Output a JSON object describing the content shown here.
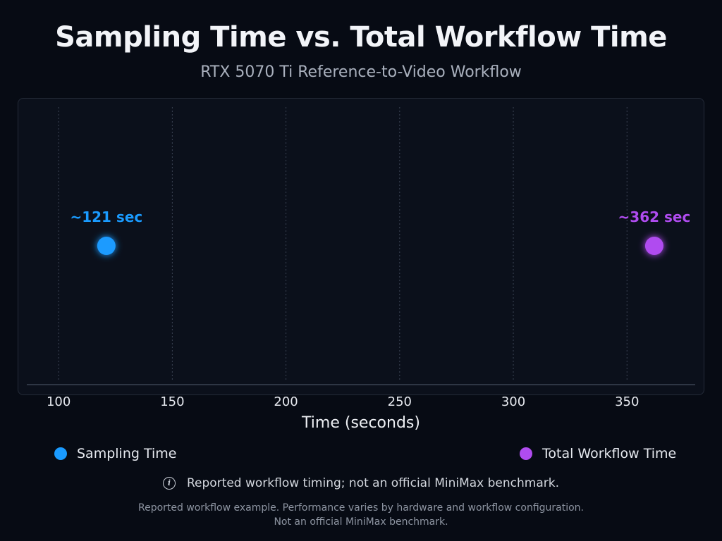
{
  "chart_data": {
    "type": "line",
    "title": "Sampling Time vs. Total Workflow Time",
    "subtitle": "RTX 5070 Ti Reference-to-Video Workflow",
    "xlabel": "Time (seconds)",
    "xlim": [
      86,
      380
    ],
    "x_ticks": [
      100,
      150,
      200,
      250,
      300,
      350
    ],
    "grid": true,
    "points": [
      {
        "name": "Sampling Time",
        "x": 121,
        "label": "~121 sec",
        "color": "#1a9bff"
      },
      {
        "name": "Total Workflow Time",
        "x": 362,
        "label": "~362 sec",
        "color": "#b04cf0"
      }
    ],
    "legend": [
      {
        "name": "Sampling Time",
        "color": "#1a9bff"
      },
      {
        "name": "Total Workflow Time",
        "color": "#b04cf0"
      }
    ]
  },
  "note": {
    "icon": "info-icon",
    "text": "Reported workflow timing; not an official MiniMax benchmark."
  },
  "disclaimer": {
    "line1": "Reported workflow example. Performance varies by hardware and workflow configuration.",
    "line2": "Not an official MiniMax benchmark."
  }
}
